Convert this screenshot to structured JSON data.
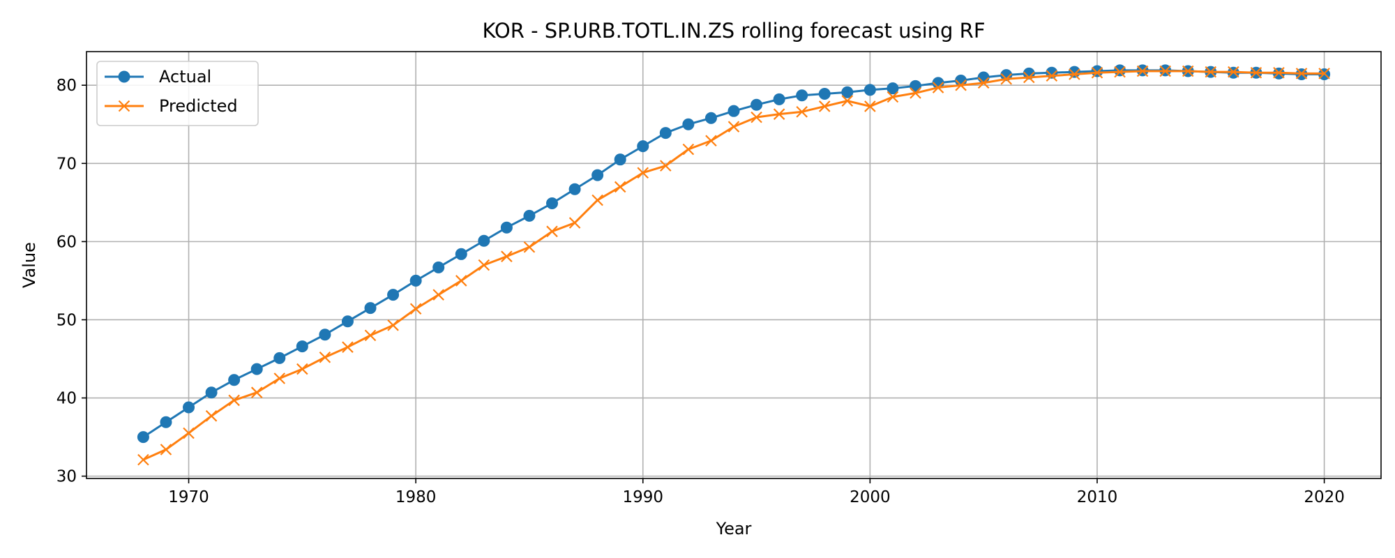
{
  "chart_data": {
    "type": "line",
    "title": "KOR - SP.URB.TOTL.IN.ZS rolling forecast using RF",
    "xlabel": "Year",
    "ylabel": "Value",
    "xlim": [
      1965.5,
      2022.5
    ],
    "ylim": [
      29.7,
      84.3
    ],
    "xticks": [
      1970,
      1980,
      1990,
      2000,
      2010,
      2020
    ],
    "yticks": [
      30,
      40,
      50,
      60,
      70,
      80
    ],
    "grid": true,
    "legend": "top-left",
    "x": [
      1968,
      1969,
      1970,
      1971,
      1972,
      1973,
      1974,
      1975,
      1976,
      1977,
      1978,
      1979,
      1980,
      1981,
      1982,
      1983,
      1984,
      1985,
      1986,
      1987,
      1988,
      1989,
      1990,
      1991,
      1992,
      1993,
      1994,
      1995,
      1996,
      1997,
      1998,
      1999,
      2000,
      2001,
      2002,
      2003,
      2004,
      2005,
      2006,
      2007,
      2008,
      2009,
      2010,
      2011,
      2012,
      2013,
      2014,
      2015,
      2016,
      2017,
      2018,
      2019,
      2020
    ],
    "series": [
      {
        "name": "Actual",
        "color": "#1f77b4",
        "marker": "circle",
        "values": [
          35.0,
          36.9,
          38.8,
          40.7,
          42.3,
          43.7,
          45.1,
          46.6,
          48.1,
          49.8,
          51.5,
          53.2,
          55.0,
          56.7,
          58.4,
          60.1,
          61.8,
          63.3,
          64.9,
          66.7,
          68.5,
          70.5,
          72.2,
          73.9,
          75.0,
          75.8,
          76.7,
          77.5,
          78.2,
          78.7,
          78.9,
          79.1,
          79.4,
          79.6,
          79.9,
          80.3,
          80.6,
          81.0,
          81.3,
          81.5,
          81.6,
          81.7,
          81.8,
          81.9,
          81.9,
          81.9,
          81.8,
          81.7,
          81.6,
          81.6,
          81.5,
          81.4,
          81.4
        ]
      },
      {
        "name": "Predicted",
        "color": "#ff7f0e",
        "marker": "x",
        "values": [
          32.1,
          33.4,
          35.5,
          37.7,
          39.7,
          40.7,
          42.5,
          43.7,
          45.2,
          46.5,
          48.0,
          49.3,
          51.4,
          53.2,
          55.0,
          57.0,
          58.1,
          59.3,
          61.3,
          62.4,
          65.3,
          67.0,
          68.8,
          69.7,
          71.8,
          72.9,
          74.7,
          75.9,
          76.3,
          76.6,
          77.3,
          78.0,
          77.3,
          78.5,
          79.0,
          79.7,
          80.0,
          80.3,
          80.8,
          81.0,
          81.2,
          81.4,
          81.6,
          81.7,
          81.8,
          81.8,
          81.8,
          81.7,
          81.7,
          81.6,
          81.6,
          81.5,
          81.5
        ]
      }
    ]
  }
}
